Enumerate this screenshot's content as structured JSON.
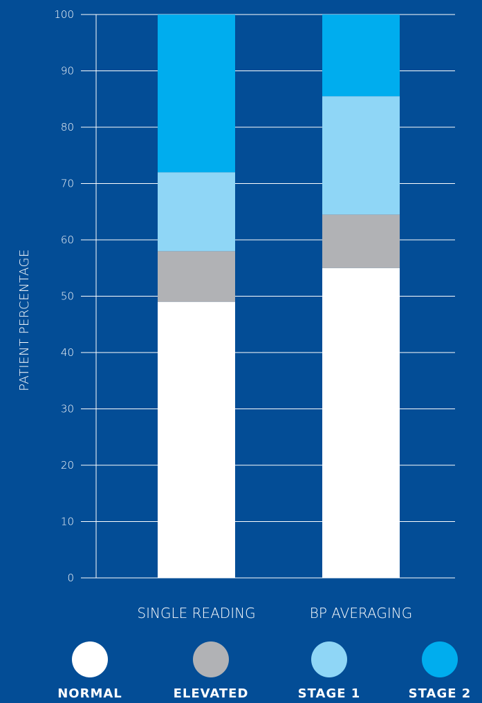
{
  "chart_data": {
    "type": "bar",
    "stacked": true,
    "categories": [
      "SINGLE READING",
      "BP AVERAGING"
    ],
    "ylabel": "PATIENT PERCENTAGE",
    "ylim": [
      0,
      100
    ],
    "yticks": [
      0,
      10,
      20,
      30,
      40,
      50,
      60,
      70,
      80,
      90,
      100
    ],
    "grid": true,
    "legend_position": "bottom",
    "series": [
      {
        "name": "NORMAL",
        "color": "#ffffff",
        "values": [
          49,
          55
        ]
      },
      {
        "name": "ELEVATED",
        "color": "#b1b2b5",
        "values": [
          9,
          9.5
        ]
      },
      {
        "name": "STAGE 1",
        "color": "#8fd6f6",
        "values": [
          14,
          21
        ]
      },
      {
        "name": "STAGE 2",
        "color": "#00adee",
        "values": [
          28,
          14.5
        ]
      }
    ]
  }
}
